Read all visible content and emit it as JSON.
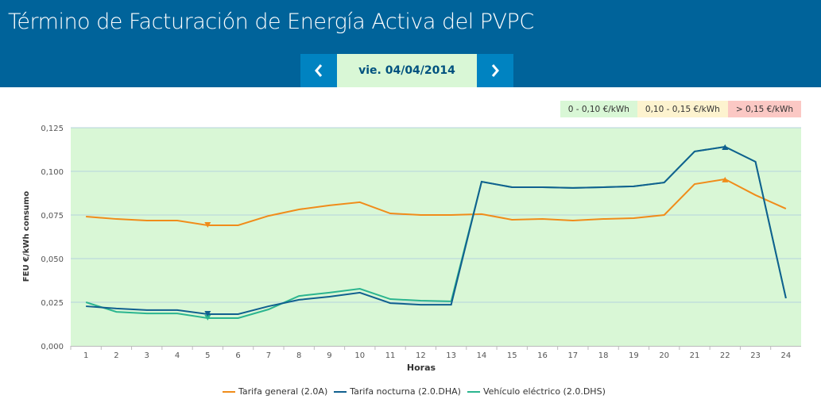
{
  "header": {
    "title": "Término de Facturación de Energía Activa del PVPC",
    "date": "vie. 04/04/2014",
    "prev_icon": "chevron-left-icon",
    "next_icon": "chevron-right-icon"
  },
  "ranges": [
    {
      "label": "0 - 0,10 €/kWh",
      "color": "#d9f7d6"
    },
    {
      "label": "0,10 - 0,15 €/kWh",
      "color": "#fdf3cf"
    },
    {
      "label": "> 0,15 €/kWh",
      "color": "#fbc8c4"
    }
  ],
  "chart_data": {
    "type": "line",
    "title": "",
    "xlabel": "Horas",
    "ylabel": "FEU €/kWh consumo",
    "ylim": [
      0,
      0.125
    ],
    "yticks": [
      "0,000",
      "0,025",
      "0,050",
      "0,075",
      "0,100",
      "0,125"
    ],
    "categories": [
      "1",
      "2",
      "3",
      "4",
      "5",
      "6",
      "7",
      "8",
      "9",
      "10",
      "11",
      "12",
      "13",
      "14",
      "15",
      "16",
      "17",
      "18",
      "19",
      "20",
      "21",
      "22",
      "23",
      "24"
    ],
    "grid": true,
    "legend": "bottom",
    "series": [
      {
        "name": "Tarifa general (2.0A)",
        "color": "#f08c1a",
        "min_index": 4,
        "max_index": 21,
        "values": [
          0.0741,
          0.0727,
          0.0718,
          0.0718,
          0.0691,
          0.0691,
          0.0745,
          0.0782,
          0.0805,
          0.0823,
          0.0759,
          0.075,
          0.075,
          0.0755,
          0.0723,
          0.0727,
          0.0718,
          0.0727,
          0.0732,
          0.075,
          0.0927,
          0.0955,
          0.0864,
          0.0786
        ]
      },
      {
        "name": "Vehículo eléctrico (2.0.DHS)",
        "color": "#2bb58f",
        "min_index": 4,
        "max_index": 21,
        "values": [
          0.025,
          0.0195,
          0.0186,
          0.0186,
          0.0159,
          0.0159,
          0.0209,
          0.0286,
          0.0305,
          0.0327,
          0.0268,
          0.0259,
          0.0255,
          0.0941,
          0.0909,
          0.0909,
          0.0905,
          0.0909,
          0.0914,
          0.0936,
          0.1114,
          0.1141,
          0.1055,
          0.0273
        ]
      },
      {
        "name": "Tarifa nocturna (2.0.DHA)",
        "color": "#11608f",
        "min_index": 4,
        "max_index": 21,
        "values": [
          0.0227,
          0.0214,
          0.0205,
          0.0205,
          0.0182,
          0.0182,
          0.0227,
          0.0264,
          0.0282,
          0.0305,
          0.0245,
          0.0236,
          0.0236,
          0.0941,
          0.0909,
          0.0909,
          0.0905,
          0.0909,
          0.0914,
          0.0936,
          0.1114,
          0.1141,
          0.1055,
          0.0273
        ]
      }
    ],
    "legend_order": [
      0,
      2,
      1
    ]
  }
}
